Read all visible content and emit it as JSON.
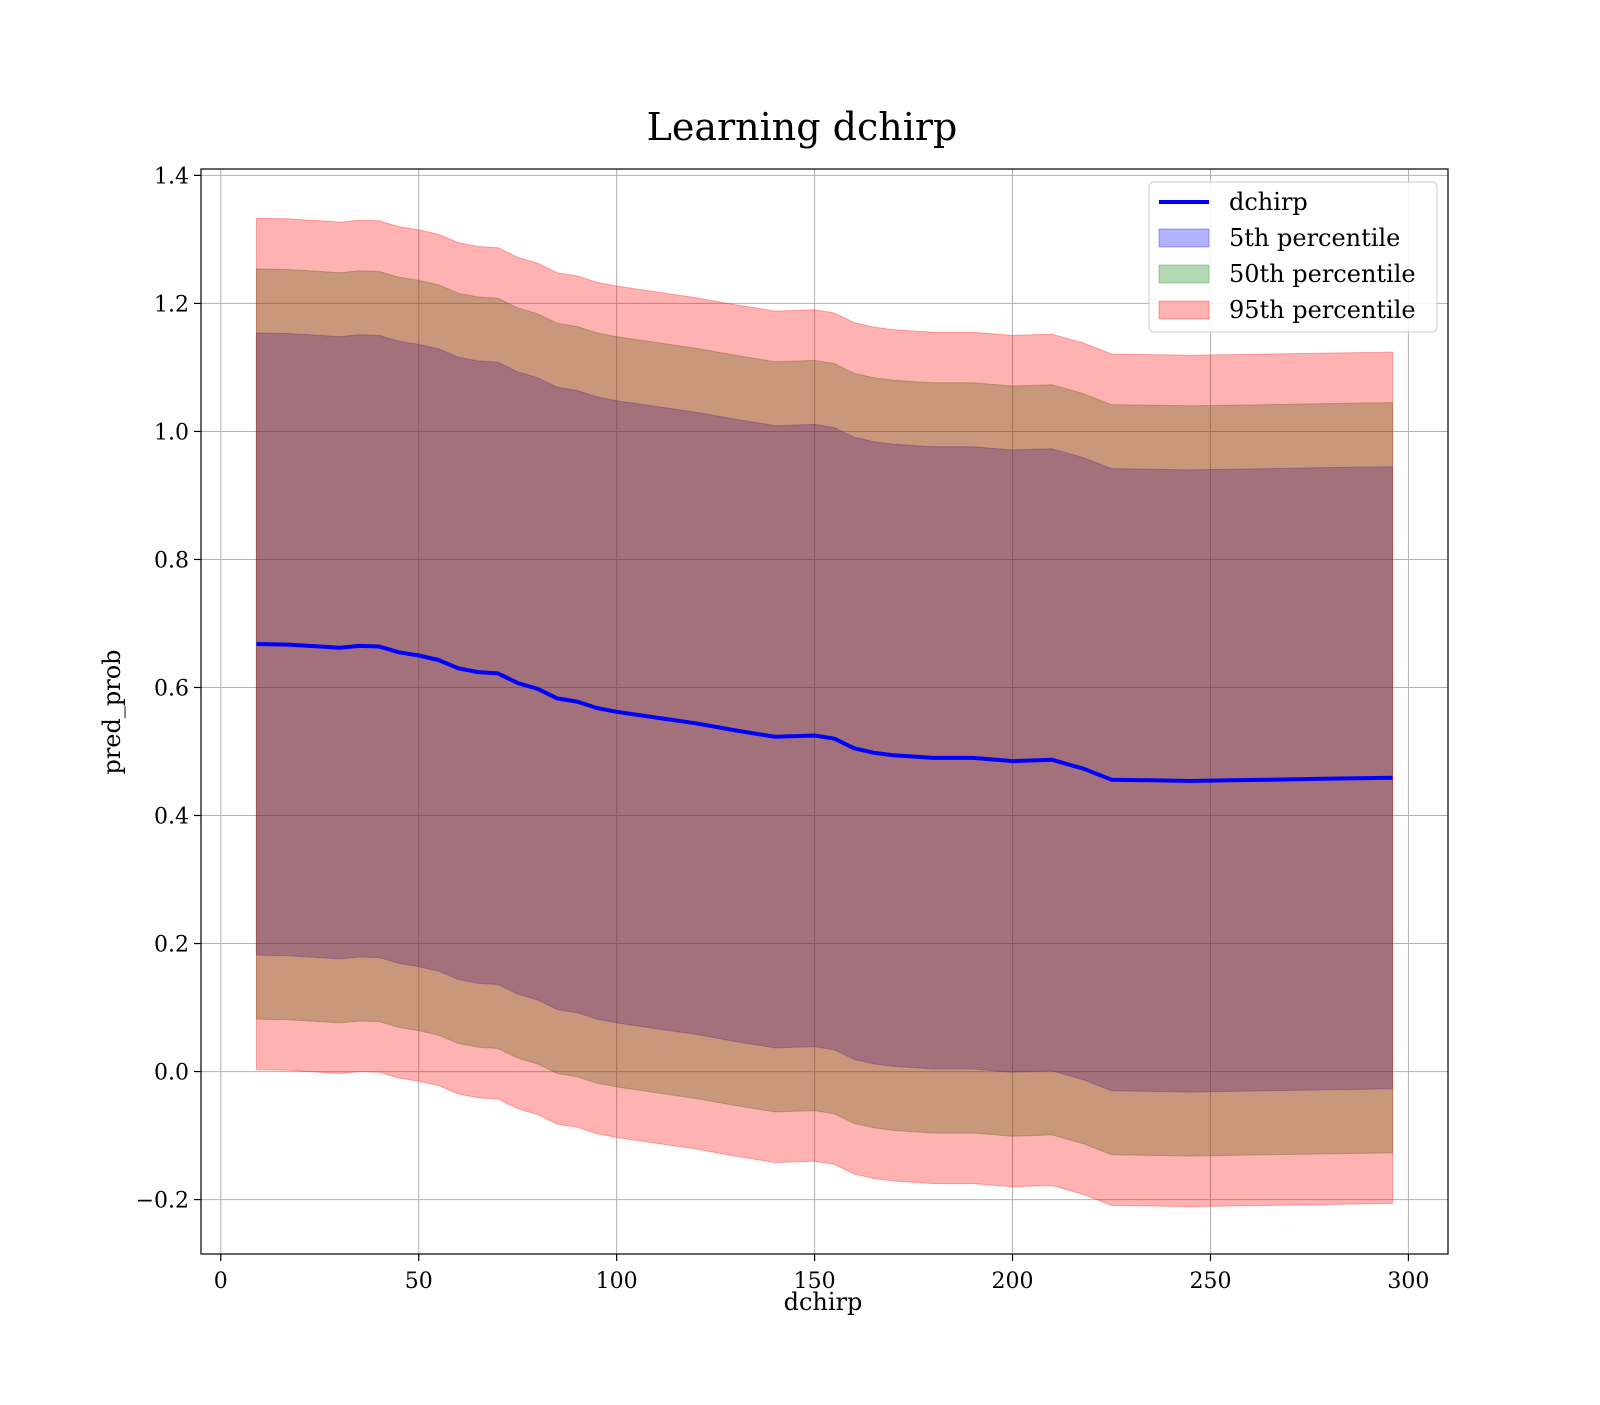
{
  "chart_data": {
    "type": "area",
    "title": "Learning dchirp",
    "xlabel": "dchirp",
    "ylabel": "pred_prob",
    "xlim": [
      -5,
      310
    ],
    "ylim": [
      -0.285,
      1.41
    ],
    "xticks": [
      0,
      50,
      100,
      150,
      200,
      250,
      300
    ],
    "yticks": [
      -0.2,
      0.0,
      0.2,
      0.4,
      0.6,
      0.8,
      1.0,
      1.2,
      1.4
    ],
    "xtick_labels": [
      "0",
      "50",
      "100",
      "150",
      "200",
      "250",
      "300"
    ],
    "ytick_labels": [
      "−0.2",
      "0.0",
      "0.2",
      "0.4",
      "0.6",
      "0.8",
      "1.0",
      "1.2",
      "1.4"
    ],
    "grid": true,
    "legend_position": "top-right",
    "x": [
      9,
      17,
      25,
      30,
      35,
      40,
      45,
      50,
      55,
      60,
      65,
      70,
      75,
      80,
      85,
      90,
      95,
      100,
      110,
      120,
      130,
      140,
      150,
      155,
      160,
      165,
      170,
      180,
      190,
      200,
      210,
      218,
      225,
      235,
      245,
      255,
      265,
      275,
      285,
      296
    ],
    "series": [
      {
        "name": "dchirp",
        "kind": "line",
        "color": "#0000ff",
        "values": [
          0.668,
          0.667,
          0.664,
          0.662,
          0.665,
          0.664,
          0.655,
          0.65,
          0.643,
          0.63,
          0.624,
          0.622,
          0.607,
          0.598,
          0.583,
          0.578,
          0.568,
          0.562,
          0.553,
          0.544,
          0.533,
          0.523,
          0.525,
          0.52,
          0.505,
          0.498,
          0.494,
          0.49,
          0.49,
          0.485,
          0.487,
          0.473,
          0.456,
          0.455,
          0.454,
          0.455,
          0.456,
          0.457,
          0.458,
          0.459
        ]
      },
      {
        "name": "5th percentile",
        "kind": "band",
        "color": "#0000ff",
        "lower": [
          0.182,
          0.181,
          0.178,
          0.176,
          0.179,
          0.178,
          0.169,
          0.164,
          0.157,
          0.144,
          0.138,
          0.136,
          0.121,
          0.112,
          0.097,
          0.092,
          0.082,
          0.076,
          0.067,
          0.058,
          0.047,
          0.037,
          0.039,
          0.034,
          0.019,
          0.012,
          0.008,
          0.004,
          0.004,
          -0.001,
          0.001,
          -0.013,
          -0.03,
          -0.031,
          -0.032,
          -0.031,
          -0.03,
          -0.029,
          -0.028,
          -0.027
        ],
        "upper": [
          1.154,
          1.153,
          1.15,
          1.148,
          1.151,
          1.15,
          1.141,
          1.136,
          1.129,
          1.116,
          1.11,
          1.108,
          1.093,
          1.084,
          1.069,
          1.064,
          1.054,
          1.048,
          1.039,
          1.03,
          1.019,
          1.009,
          1.011,
          1.006,
          0.991,
          0.984,
          0.98,
          0.976,
          0.976,
          0.971,
          0.973,
          0.959,
          0.942,
          0.941,
          0.94,
          0.941,
          0.942,
          0.943,
          0.944,
          0.945
        ]
      },
      {
        "name": "50th percentile",
        "kind": "band",
        "color": "#008000",
        "lower": [
          0.082,
          0.081,
          0.078,
          0.076,
          0.079,
          0.078,
          0.069,
          0.064,
          0.057,
          0.044,
          0.038,
          0.036,
          0.021,
          0.012,
          -0.003,
          -0.008,
          -0.018,
          -0.024,
          -0.033,
          -0.042,
          -0.053,
          -0.063,
          -0.061,
          -0.066,
          -0.081,
          -0.088,
          -0.092,
          -0.096,
          -0.096,
          -0.101,
          -0.099,
          -0.113,
          -0.13,
          -0.131,
          -0.132,
          -0.131,
          -0.13,
          -0.129,
          -0.128,
          -0.127
        ],
        "upper": [
          1.254,
          1.253,
          1.25,
          1.248,
          1.251,
          1.25,
          1.241,
          1.236,
          1.229,
          1.216,
          1.21,
          1.208,
          1.193,
          1.184,
          1.169,
          1.164,
          1.154,
          1.148,
          1.139,
          1.13,
          1.119,
          1.109,
          1.111,
          1.106,
          1.091,
          1.084,
          1.08,
          1.076,
          1.076,
          1.071,
          1.073,
          1.059,
          1.042,
          1.041,
          1.04,
          1.041,
          1.042,
          1.043,
          1.044,
          1.045
        ]
      },
      {
        "name": "95th percentile",
        "kind": "band",
        "color": "#ff0000",
        "lower": [
          0.003,
          0.002,
          -0.001,
          -0.003,
          0.0,
          -0.001,
          -0.01,
          -0.015,
          -0.022,
          -0.035,
          -0.041,
          -0.043,
          -0.058,
          -0.067,
          -0.082,
          -0.087,
          -0.097,
          -0.103,
          -0.112,
          -0.121,
          -0.132,
          -0.142,
          -0.14,
          -0.145,
          -0.16,
          -0.167,
          -0.171,
          -0.175,
          -0.175,
          -0.18,
          -0.178,
          -0.192,
          -0.209,
          -0.21,
          -0.211,
          -0.21,
          -0.209,
          -0.208,
          -0.207,
          -0.206
        ],
        "upper": [
          1.333,
          1.332,
          1.329,
          1.327,
          1.33,
          1.329,
          1.32,
          1.315,
          1.308,
          1.295,
          1.289,
          1.287,
          1.272,
          1.263,
          1.248,
          1.243,
          1.233,
          1.227,
          1.218,
          1.209,
          1.198,
          1.188,
          1.19,
          1.185,
          1.17,
          1.163,
          1.159,
          1.155,
          1.155,
          1.15,
          1.152,
          1.138,
          1.121,
          1.12,
          1.119,
          1.12,
          1.121,
          1.122,
          1.123,
          1.124
        ]
      }
    ]
  }
}
